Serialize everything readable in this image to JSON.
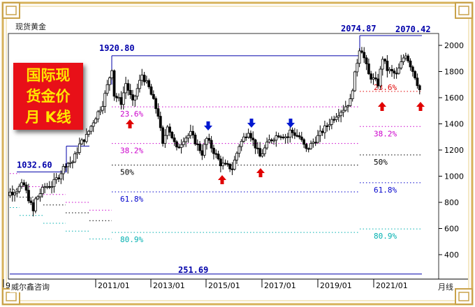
{
  "header": {
    "instrument": "现货黄金"
  },
  "badge": {
    "line1": "国际现",
    "line2": "货金价",
    "line3": "月 K线"
  },
  "footer": {
    "watermark": "威尔鑫咨询",
    "period": "月线"
  },
  "colors": {
    "up_arrow": "#e00000",
    "down_arrow": "#0018d0",
    "fib_23_38": "#cc00cc",
    "fib_50": "#000000",
    "fib_61": "#0000cc",
    "fib_80": "#00b0b0",
    "fib_23_right": "#e00000",
    "peak_label": "#0000aa"
  },
  "chart_data": {
    "type": "candlestick",
    "x_tick_labels": [
      "9/01",
      "2011/01",
      "2013/01",
      "2015/01",
      "2017/01",
      "2019/01",
      "2021/01"
    ],
    "y_ticks": [
      400,
      600,
      800,
      1000,
      1200,
      1400,
      1600,
      1800,
      2000
    ],
    "ylim": [
      200,
      2120
    ],
    "close_series_approx": [
      {
        "date": "2008-06",
        "close": 930
      },
      {
        "date": "2008-10",
        "close": 730
      },
      {
        "date": "2008-11",
        "close": 820
      },
      {
        "date": "2009-03",
        "close": 920
      },
      {
        "date": "2009-06",
        "close": 930
      },
      {
        "date": "2009-09",
        "close": 1000
      },
      {
        "date": "2009-12",
        "close": 1095
      },
      {
        "date": "2010-03",
        "close": 1110
      },
      {
        "date": "2010-06",
        "close": 1240
      },
      {
        "date": "2010-09",
        "close": 1305
      },
      {
        "date": "2010-12",
        "close": 1420
      },
      {
        "date": "2011-04",
        "close": 1555
      },
      {
        "date": "2011-08",
        "close": 1825
      },
      {
        "date": "2011-09",
        "close": 1620
      },
      {
        "date": "2011-12",
        "close": 1565
      },
      {
        "date": "2012-02",
        "close": 1710
      },
      {
        "date": "2012-05",
        "close": 1560
      },
      {
        "date": "2012-09",
        "close": 1775
      },
      {
        "date": "2012-12",
        "close": 1675
      },
      {
        "date": "2013-04",
        "close": 1470
      },
      {
        "date": "2013-06",
        "close": 1235
      },
      {
        "date": "2013-08",
        "close": 1395
      },
      {
        "date": "2013-12",
        "close": 1205
      },
      {
        "date": "2014-03",
        "close": 1285
      },
      {
        "date": "2014-06",
        "close": 1325
      },
      {
        "date": "2014-11",
        "close": 1175
      },
      {
        "date": "2015-01",
        "close": 1285
      },
      {
        "date": "2015-07",
        "close": 1095
      },
      {
        "date": "2015-12",
        "close": 1060
      },
      {
        "date": "2016-03",
        "close": 1235
      },
      {
        "date": "2016-07",
        "close": 1350
      },
      {
        "date": "2016-12",
        "close": 1150
      },
      {
        "date": "2017-04",
        "close": 1270
      },
      {
        "date": "2017-08",
        "close": 1320
      },
      {
        "date": "2017-12",
        "close": 1300
      },
      {
        "date": "2018-01",
        "close": 1345
      },
      {
        "date": "2018-05",
        "close": 1300
      },
      {
        "date": "2018-08",
        "close": 1200
      },
      {
        "date": "2018-12",
        "close": 1280
      },
      {
        "date": "2019-06",
        "close": 1410
      },
      {
        "date": "2019-09",
        "close": 1470
      },
      {
        "date": "2019-12",
        "close": 1515
      },
      {
        "date": "2020-03",
        "close": 1575
      },
      {
        "date": "2020-07",
        "close": 1975
      },
      {
        "date": "2020-08",
        "close": 1965
      },
      {
        "date": "2020-11",
        "close": 1775
      },
      {
        "date": "2021-03",
        "close": 1705
      },
      {
        "date": "2021-05",
        "close": 1905
      },
      {
        "date": "2021-07",
        "close": 1815
      },
      {
        "date": "2021-11",
        "close": 1775
      },
      {
        "date": "2022-02",
        "close": 1905
      },
      {
        "date": "2022-03",
        "close": 1935
      },
      {
        "date": "2022-05",
        "close": 1850
      },
      {
        "date": "2022-07",
        "close": 1765
      },
      {
        "date": "2022-08",
        "close": 1710
      },
      {
        "date": "2022-09",
        "close": 1660
      },
      {
        "date": "2022-10",
        "close": 1640
      }
    ],
    "peak_labels": [
      {
        "text": "1032.60",
        "date": "2008-03",
        "value": 1032.6
      },
      {
        "text": "1920.80",
        "date": "2011-09",
        "value": 1920.8
      },
      {
        "text": "2074.87",
        "date": "2020-08",
        "value": 2074.87
      },
      {
        "text": "2070.42",
        "date": "2022-03",
        "value": 2070.42
      }
    ],
    "low_label": {
      "text": "251.69",
      "value": 251.69
    },
    "fib_levels_left": [
      {
        "label": "23.6%",
        "value": 1530
      },
      {
        "label": "38.2%",
        "value": 1250
      },
      {
        "label": "50%",
        "value": 1085
      },
      {
        "label": "61.8%",
        "value": 880
      },
      {
        "label": "80.9%",
        "value": 570
      }
    ],
    "fib_levels_right": [
      {
        "label": "23.6%",
        "value": 1648
      },
      {
        "label": "38.2%",
        "value": 1380
      },
      {
        "label": "50%",
        "value": 1163
      },
      {
        "label": "61.8%",
        "value": 950
      },
      {
        "label": "80.9%",
        "value": 597
      }
    ],
    "arrows_up": [
      {
        "date": "2012-07",
        "value": 1440
      },
      {
        "date": "2015-12",
        "value": 970
      },
      {
        "date": "2016-12",
        "value": 1030
      },
      {
        "date": "2021-03",
        "value": 1570
      },
      {
        "date": "2022-09",
        "value": 1570
      }
    ],
    "arrows_down": [
      {
        "date": "2014-06",
        "value": 1385
      },
      {
        "date": "2016-07",
        "value": 1405
      },
      {
        "date": "2018-02",
        "value": 1405
      }
    ]
  }
}
